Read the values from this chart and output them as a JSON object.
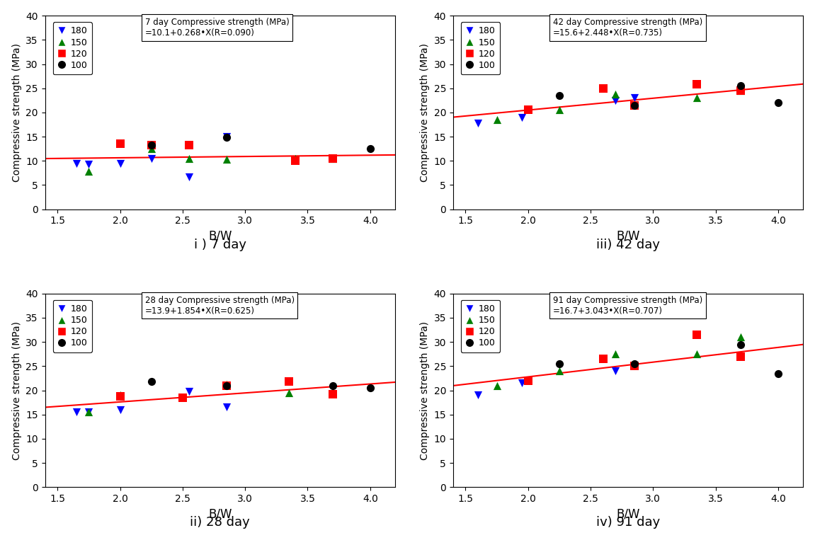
{
  "panels": [
    {
      "label": "i ) 7 day",
      "title_line1": "7 day Compressive strength (MPa)",
      "title_line2": "=10.1+0.268•X(R=0.090)",
      "intercept": 10.1,
      "slope": 0.268,
      "series": {
        "180": {
          "color": "blue",
          "marker": "v",
          "x": [
            1.65,
            1.75,
            2.0,
            2.25,
            2.55,
            2.85,
            3.7
          ],
          "y": [
            9.5,
            9.3,
            9.5,
            10.5,
            6.7,
            15.0,
            10.5
          ]
        },
        "150": {
          "color": "green",
          "marker": "^",
          "x": [
            1.75,
            2.25,
            2.55,
            2.85,
            3.4,
            3.7
          ],
          "y": [
            7.8,
            12.5,
            10.5,
            10.3,
            10.5,
            10.5
          ]
        },
        "120": {
          "color": "red",
          "marker": "s",
          "x": [
            2.0,
            2.25,
            2.55,
            3.4,
            3.7
          ],
          "y": [
            13.5,
            13.2,
            13.3,
            10.0,
            10.5
          ]
        },
        "100": {
          "color": "black",
          "marker": "o",
          "x": [
            2.25,
            2.85,
            4.0
          ],
          "y": [
            13.3,
            14.8,
            12.5
          ]
        }
      }
    },
    {
      "label": "iii) 42 day",
      "title_line1": "42 day Compressive strength (MPa)",
      "title_line2": "=15.6+2.448•X(R=0.735)",
      "intercept": 15.6,
      "slope": 2.448,
      "series": {
        "180": {
          "color": "blue",
          "marker": "v",
          "x": [
            1.6,
            1.95,
            2.7,
            2.85
          ],
          "y": [
            17.8,
            19.0,
            22.5,
            23.0
          ]
        },
        "150": {
          "color": "green",
          "marker": "^",
          "x": [
            1.75,
            2.25,
            2.7,
            3.35,
            3.7
          ],
          "y": [
            18.5,
            20.5,
            23.8,
            23.0,
            24.5
          ]
        },
        "120": {
          "color": "red",
          "marker": "s",
          "x": [
            2.0,
            2.6,
            2.85,
            3.35,
            3.7
          ],
          "y": [
            20.5,
            25.0,
            21.5,
            25.8,
            24.5
          ]
        },
        "100": {
          "color": "black",
          "marker": "o",
          "x": [
            2.25,
            2.85,
            3.7,
            4.0
          ],
          "y": [
            23.5,
            21.5,
            25.5,
            22.0
          ]
        }
      }
    },
    {
      "label": "ii) 28 day",
      "title_line1": "28 day Compressive strength (MPa)",
      "title_line2": "=13.9+1.854•X(R=0.625)",
      "intercept": 13.9,
      "slope": 1.854,
      "series": {
        "180": {
          "color": "blue",
          "marker": "v",
          "x": [
            1.65,
            1.75,
            2.0,
            2.55,
            2.85
          ],
          "y": [
            15.5,
            15.5,
            16.0,
            19.8,
            16.6
          ]
        },
        "150": {
          "color": "green",
          "marker": "^",
          "x": [
            1.75,
            2.0,
            2.85,
            3.35,
            3.7
          ],
          "y": [
            15.6,
            19.0,
            21.3,
            19.5,
            19.5
          ]
        },
        "120": {
          "color": "red",
          "marker": "s",
          "x": [
            2.0,
            2.5,
            2.85,
            3.35,
            3.7
          ],
          "y": [
            18.8,
            18.5,
            21.0,
            21.8,
            19.2
          ]
        },
        "100": {
          "color": "black",
          "marker": "o",
          "x": [
            2.25,
            2.85,
            3.7,
            4.0
          ],
          "y": [
            21.8,
            21.0,
            21.0,
            20.5
          ]
        }
      }
    },
    {
      "label": "iv) 91 day",
      "title_line1": "91 day Compressive strength (MPa)",
      "title_line2": "=16.7+3.043•X(R=0.707)",
      "intercept": 16.7,
      "slope": 3.043,
      "series": {
        "180": {
          "color": "blue",
          "marker": "v",
          "x": [
            1.6,
            1.95,
            2.7,
            2.85
          ],
          "y": [
            19.0,
            21.5,
            24.0,
            25.0
          ]
        },
        "150": {
          "color": "green",
          "marker": "^",
          "x": [
            1.75,
            2.25,
            2.7,
            3.35,
            3.7
          ],
          "y": [
            21.0,
            24.0,
            27.5,
            27.5,
            31.0
          ]
        },
        "120": {
          "color": "red",
          "marker": "s",
          "x": [
            2.0,
            2.6,
            2.85,
            3.35,
            3.7
          ],
          "y": [
            22.0,
            26.5,
            25.0,
            31.5,
            27.0
          ]
        },
        "100": {
          "color": "black",
          "marker": "o",
          "x": [
            2.25,
            2.85,
            3.7,
            4.0
          ],
          "y": [
            25.5,
            25.5,
            29.5,
            23.5
          ]
        }
      }
    }
  ],
  "xlim": [
    1.4,
    4.2
  ],
  "ylim": [
    0,
    40
  ],
  "xticks": [
    1.5,
    2.0,
    2.5,
    3.0,
    3.5,
    4.0
  ],
  "yticks": [
    0,
    5,
    10,
    15,
    20,
    25,
    30,
    35,
    40
  ],
  "xlabel": "B/W",
  "ylabel": "Compressive strength (MPa)",
  "background_color": "#ffffff"
}
